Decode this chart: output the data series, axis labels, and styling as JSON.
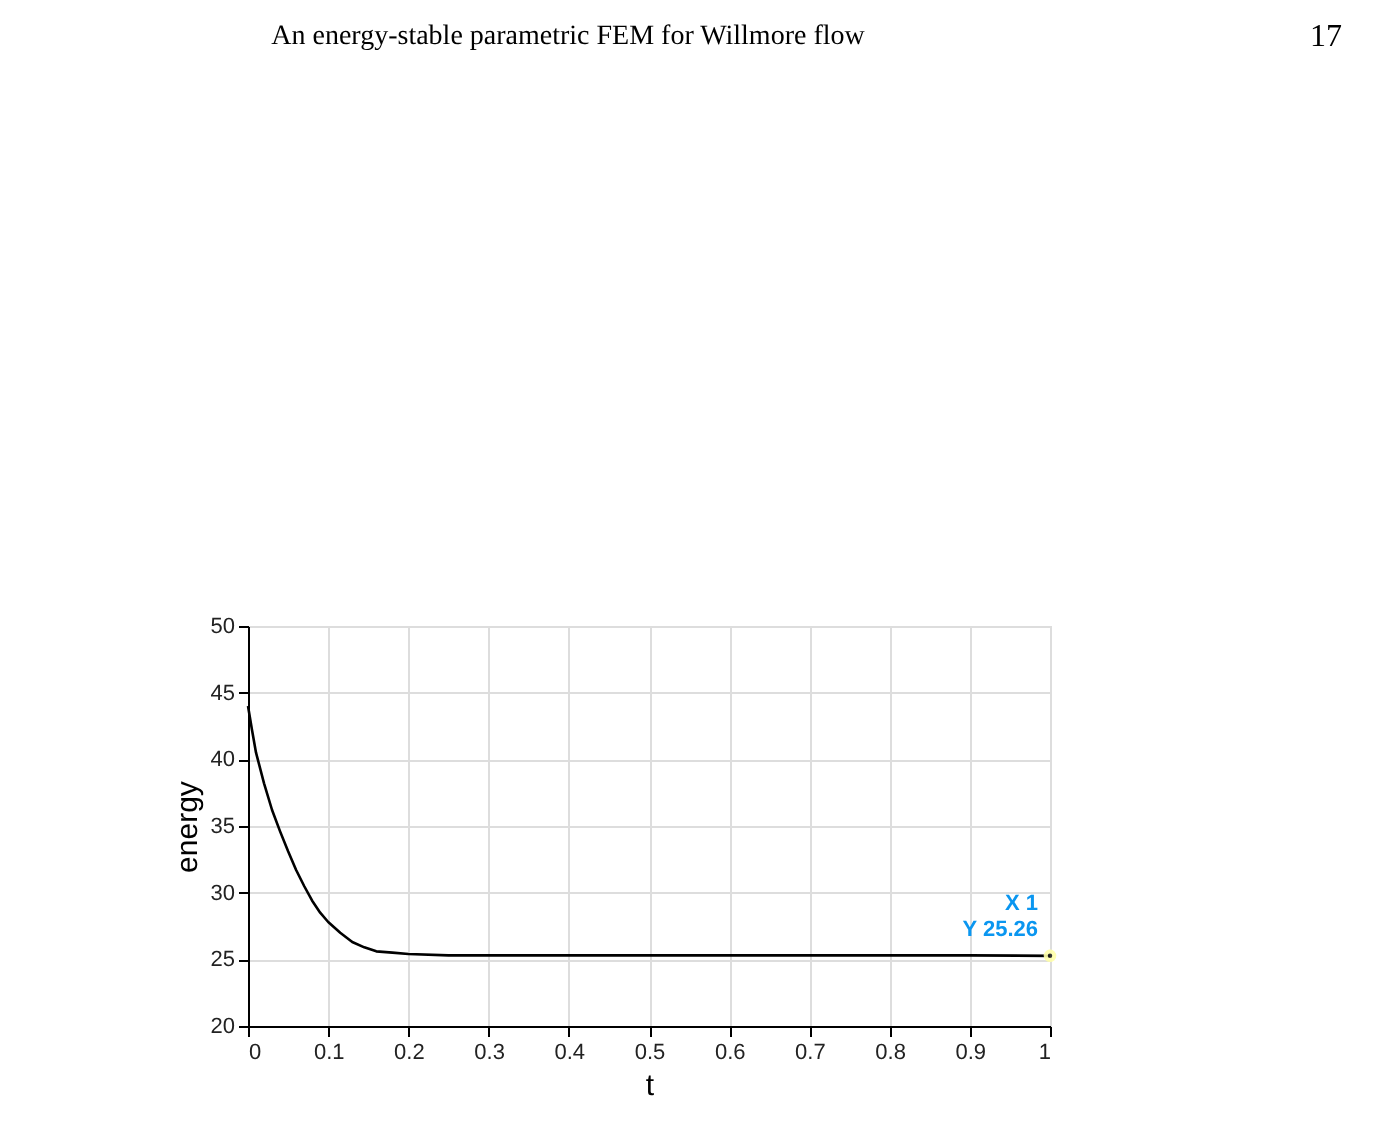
{
  "chart_data": {
    "type": "line",
    "xlabel": "t",
    "ylabel": "energy",
    "x": [
      0,
      0.005,
      0.01,
      0.02,
      0.03,
      0.04,
      0.05,
      0.06,
      0.07,
      0.08,
      0.09,
      0.1,
      0.115,
      0.13,
      0.145,
      0.16,
      0.18,
      0.2,
      0.25,
      0.3,
      0.4,
      0.5,
      0.6,
      0.7,
      0.8,
      0.9,
      1
    ],
    "series": [
      {
        "color": "#000000",
        "values": [
          44,
          42.2,
          40.5,
          38.2,
          36.2,
          34.6,
          33.1,
          31.7,
          30.5,
          29.4,
          28.5,
          27.8,
          27,
          26.3,
          25.9,
          25.6,
          25.5,
          25.4,
          25.3,
          25.3,
          25.3,
          25.3,
          25.3,
          25.3,
          25.3,
          25.3,
          25.26
        ]
      }
    ],
    "xlim": [
      0,
      1
    ],
    "ylim": [
      20,
      50
    ],
    "xticks": [
      0,
      0.1,
      0.2,
      0.3,
      0.4,
      0.5,
      0.6,
      0.7,
      0.8,
      0.9,
      1
    ],
    "yticks": [
      20,
      25,
      30,
      35,
      40,
      45,
      50
    ],
    "grid": true,
    "legend": false,
    "marker": "none",
    "line_style": "solid",
    "annotations": [
      "An energy-stable parametric FEM for Willmore flow",
      "17",
      {
        "text": "X 1",
        "x": 1,
        "y": 25.26
      },
      {
        "text": "Y 25.26",
        "x": 1,
        "y": 25.26
      }
    ]
  }
}
